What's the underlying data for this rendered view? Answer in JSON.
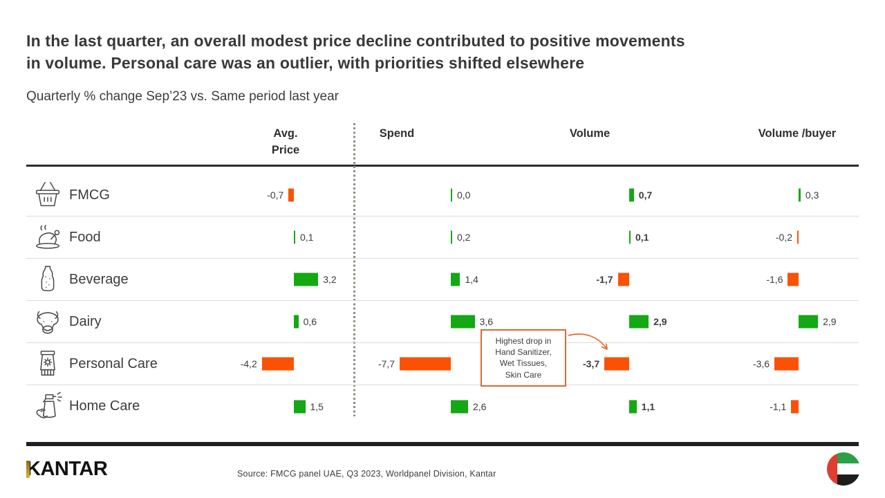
{
  "title": {
    "line1": "In the last quarter, an overall modest price decline contributed to positive movements",
    "line2": "in volume. Personal care was an outlier, with priorities shifted elsewhere"
  },
  "subtitle": "Quarterly % change Sep’23 vs. Same period last year",
  "chart_data": {
    "type": "bar",
    "orientation": "horizontal",
    "unit": "% change vs same period last year",
    "value_format": "one decimal, comma as decimal separator",
    "columns": [
      {
        "label": "Avg. Price",
        "emphasis": false
      },
      {
        "label": "Spend",
        "emphasis": false
      },
      {
        "label": "Volume",
        "emphasis": true
      },
      {
        "label": "Volume /buyer",
        "emphasis": false
      }
    ],
    "categories": [
      "FMCG",
      "Food",
      "Beverage",
      "Dairy",
      "Personal Care",
      "Home Care"
    ],
    "rows": [
      {
        "category": "FMCG",
        "icon": "shopping-basket-icon",
        "values": [
          -0.7,
          0.0,
          0.7,
          0.3
        ]
      },
      {
        "category": "Food",
        "icon": "roast-chicken-icon",
        "values": [
          0.1,
          0.2,
          0.1,
          -0.2
        ]
      },
      {
        "category": "Beverage",
        "icon": "soda-bottle-icon",
        "values": [
          3.2,
          1.4,
          -1.7,
          -1.6
        ]
      },
      {
        "category": "Dairy",
        "icon": "cow-icon",
        "values": [
          0.6,
          3.6,
          2.9,
          2.9
        ]
      },
      {
        "category": "Personal Care",
        "icon": "sunscreen-tube-icon",
        "values": [
          -4.2,
          -7.7,
          -3.7,
          -3.6
        ]
      },
      {
        "category": "Home Care",
        "icon": "spray-bottle-icon",
        "values": [
          1.5,
          2.6,
          1.1,
          -1.1
        ]
      }
    ],
    "positive_color": "#14A814",
    "negative_color": "#FB5104",
    "legend": "green = positive change, orange = negative change",
    "gridlines": false
  },
  "annotation": {
    "lines": [
      "Highest drop in",
      "Hand Sanitizer,",
      "Wet Tissues,",
      "Skin Care"
    ],
    "target": "Personal Care / Volume",
    "border_color": "#D96A33",
    "arrow_color": "#E8692E"
  },
  "footer": {
    "logo_text": "KANTAR",
    "source_text": "Source: FMCG panel UAE, Q3 2023, Worldpanel  Division,  Kantar"
  }
}
